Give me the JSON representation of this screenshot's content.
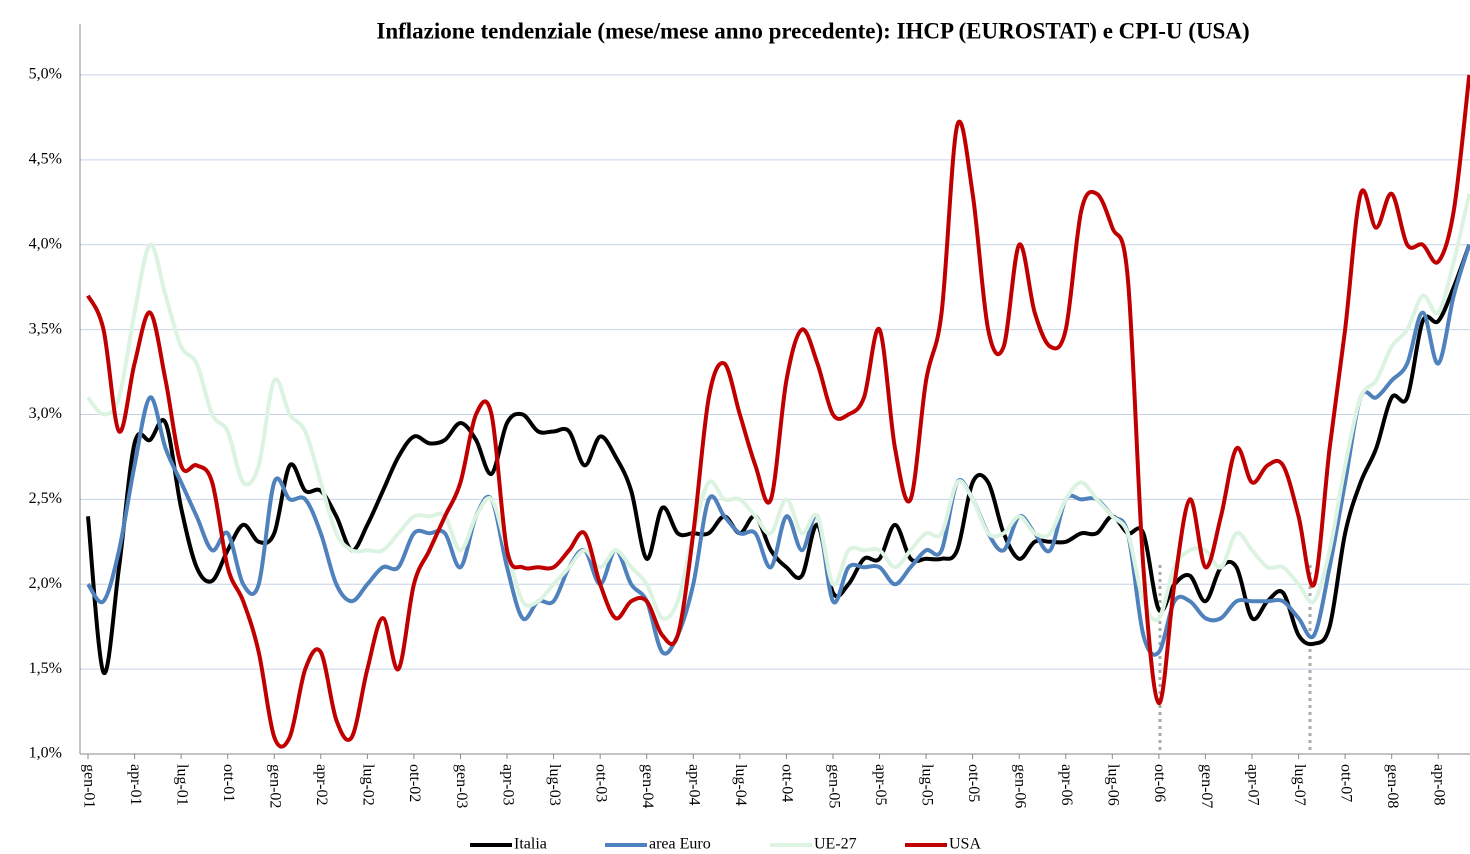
{
  "chart_data": {
    "type": "line",
    "title": "Inflazione tendenziale (mese/mese anno precedente): IHCP (EUROSTAT) e  CPI-U (USA)",
    "categories": [
      "gen-01",
      null,
      null,
      "apr-01",
      null,
      null,
      "lug-01",
      null,
      null,
      "ott-01",
      null,
      null,
      "gen-02",
      null,
      null,
      "apr-02",
      null,
      null,
      "lug-02",
      null,
      null,
      "ott-02",
      null,
      null,
      "gen-03",
      null,
      null,
      "apr-03",
      null,
      null,
      "lug-03",
      null,
      null,
      "ott-03",
      null,
      null,
      "gen-04",
      null,
      null,
      "apr-04",
      null,
      null,
      "lug-04",
      null,
      null,
      "ott-04",
      null,
      null,
      "gen-05",
      null,
      null,
      "apr-05",
      null,
      null,
      "lug-05",
      null,
      null,
      "ott-05",
      null,
      null,
      "gen-06",
      null,
      null,
      "apr-06",
      null,
      null,
      "lug-06",
      null,
      null,
      "ott-06",
      null,
      null,
      "gen-07",
      null,
      null,
      "apr-07",
      null,
      null,
      "lug-07",
      null,
      null,
      "ott-07",
      null,
      null,
      "gen-08",
      null,
      null,
      "apr-08",
      null,
      null
    ],
    "series": [
      {
        "name": "Italia",
        "color": "#000000",
        "values": [
          2.4,
          1.48,
          2.1,
          2.83,
          2.85,
          2.95,
          2.45,
          2.1,
          2.02,
          2.2,
          2.35,
          2.25,
          2.3,
          2.7,
          2.55,
          2.55,
          2.4,
          2.2,
          2.35,
          2.55,
          2.75,
          2.87,
          2.83,
          2.85,
          2.95,
          2.85,
          2.65,
          2.95,
          3.0,
          2.9,
          2.9,
          2.9,
          2.7,
          2.87,
          2.75,
          2.55,
          2.15,
          2.45,
          2.3,
          2.3,
          2.3,
          2.4,
          2.3,
          2.4,
          2.2,
          2.1,
          2.05,
          2.35,
          1.95,
          2.0,
          2.15,
          2.15,
          2.35,
          2.15,
          2.15,
          2.15,
          2.2,
          2.6,
          2.6,
          2.3,
          2.15,
          2.25,
          2.25,
          2.25,
          2.3,
          2.3,
          2.4,
          2.3,
          2.3,
          1.85,
          2.0,
          2.05,
          1.9,
          2.1,
          2.1,
          1.8,
          1.9,
          1.95,
          1.7,
          1.65,
          1.75,
          2.3,
          2.6,
          2.8,
          3.1,
          3.1,
          3.55,
          3.55,
          3.75,
          4.0
        ]
      },
      {
        "name": "area Euro",
        "color": "#4f81bd",
        "values": [
          2.0,
          1.9,
          2.2,
          2.7,
          3.1,
          2.8,
          2.6,
          2.4,
          2.2,
          2.3,
          2.0,
          2.0,
          2.6,
          2.5,
          2.5,
          2.3,
          2.0,
          1.9,
          2.0,
          2.1,
          2.1,
          2.3,
          2.3,
          2.3,
          2.1,
          2.4,
          2.5,
          2.1,
          1.8,
          1.9,
          1.9,
          2.1,
          2.2,
          2.0,
          2.2,
          2.0,
          1.9,
          1.6,
          1.7,
          2.0,
          2.5,
          2.4,
          2.3,
          2.3,
          2.1,
          2.4,
          2.2,
          2.4,
          1.9,
          2.1,
          2.1,
          2.1,
          2.0,
          2.1,
          2.2,
          2.2,
          2.6,
          2.5,
          2.3,
          2.2,
          2.4,
          2.3,
          2.2,
          2.5,
          2.5,
          2.5,
          2.4,
          2.3,
          1.7,
          1.6,
          1.9,
          1.9,
          1.8,
          1.8,
          1.9,
          1.9,
          1.9,
          1.9,
          1.8,
          1.7,
          2.1,
          2.6,
          3.1,
          3.1,
          3.2,
          3.3,
          3.6,
          3.3,
          3.7,
          4.0
        ]
      },
      {
        "name": "UE-27",
        "color": "#dcf3e2",
        "values": [
          3.1,
          3.0,
          3.1,
          3.6,
          4.0,
          3.7,
          3.4,
          3.3,
          3.0,
          2.9,
          2.6,
          2.7,
          3.2,
          3.0,
          2.9,
          2.6,
          2.3,
          2.2,
          2.2,
          2.2,
          2.3,
          2.4,
          2.4,
          2.4,
          2.2,
          2.4,
          2.5,
          2.2,
          1.9,
          1.9,
          2.0,
          2.1,
          2.2,
          2.1,
          2.2,
          2.1,
          2.0,
          1.8,
          1.9,
          2.3,
          2.6,
          2.5,
          2.5,
          2.4,
          2.3,
          2.5,
          2.3,
          2.4,
          2.0,
          2.2,
          2.2,
          2.2,
          2.1,
          2.2,
          2.3,
          2.3,
          2.6,
          2.5,
          2.3,
          2.3,
          2.4,
          2.3,
          2.3,
          2.5,
          2.6,
          2.5,
          2.4,
          2.3,
          1.9,
          1.8,
          2.1,
          2.2,
          2.2,
          2.1,
          2.3,
          2.2,
          2.1,
          2.1,
          2.0,
          1.9,
          2.2,
          2.7,
          3.1,
          3.2,
          3.4,
          3.5,
          3.7,
          3.6,
          3.9,
          4.3
        ]
      },
      {
        "name": "USA",
        "color": "#c00000",
        "values": [
          3.7,
          3.5,
          2.9,
          3.3,
          3.6,
          3.2,
          2.7,
          2.7,
          2.6,
          2.1,
          1.9,
          1.6,
          1.1,
          1.1,
          1.5,
          1.6,
          1.2,
          1.1,
          1.5,
          1.8,
          1.5,
          2.0,
          2.2,
          2.4,
          2.6,
          3.0,
          3.0,
          2.2,
          2.1,
          2.1,
          2.1,
          2.2,
          2.3,
          2.0,
          1.8,
          1.9,
          1.9,
          1.7,
          1.7,
          2.3,
          3.1,
          3.3,
          3.0,
          2.7,
          2.5,
          3.2,
          3.5,
          3.3,
          3.0,
          3.0,
          3.1,
          3.5,
          2.8,
          2.5,
          3.2,
          3.6,
          4.7,
          4.3,
          3.5,
          3.4,
          4.0,
          3.6,
          3.4,
          3.5,
          4.2,
          4.3,
          4.1,
          3.8,
          2.1,
          1.3,
          2.0,
          2.5,
          2.1,
          2.4,
          2.8,
          2.6,
          2.7,
          2.7,
          2.4,
          2.0,
          2.8,
          3.5,
          4.3,
          4.1,
          4.3,
          4.0,
          4.0,
          3.9,
          4.2,
          5.0
        ]
      }
    ],
    "ylim": [
      1.0,
      5.3
    ],
    "yticks": [
      {
        "value": 1.0,
        "label": "1,0%"
      },
      {
        "value": 1.5,
        "label": "1,5%"
      },
      {
        "value": 2.0,
        "label": "2,0%"
      },
      {
        "value": 2.5,
        "label": "2,5%"
      },
      {
        "value": 3.0,
        "label": "3,0%"
      },
      {
        "value": 3.5,
        "label": "3,5%"
      },
      {
        "value": 4.0,
        "label": "4,0%"
      },
      {
        "value": 4.5,
        "label": "4,5%"
      },
      {
        "value": 5.0,
        "label": "5,0%"
      }
    ],
    "grid": true,
    "legend": "bottom"
  }
}
